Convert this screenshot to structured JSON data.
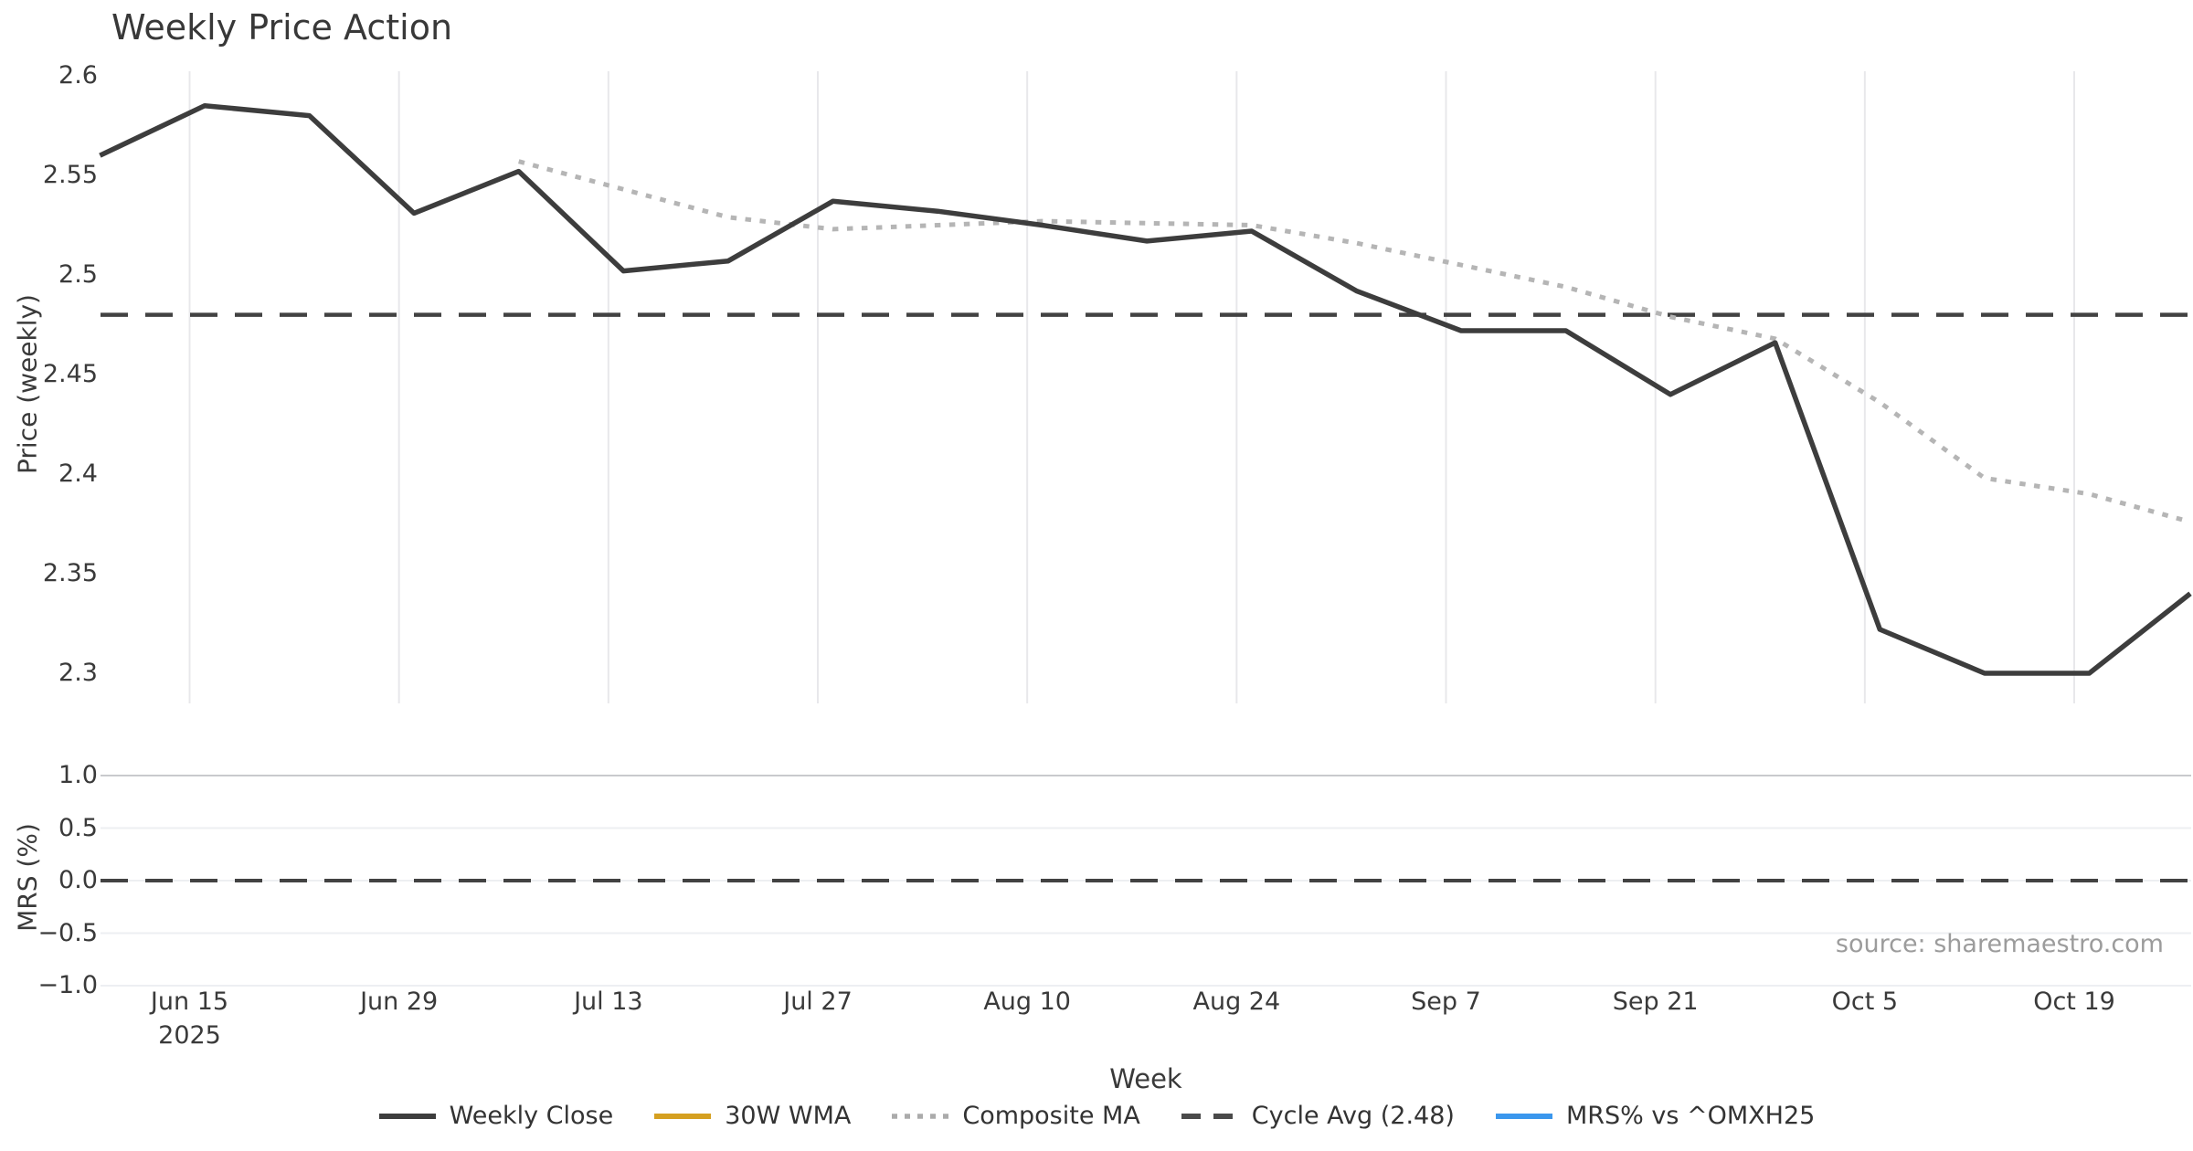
{
  "title": "Weekly Price Action",
  "source_note": "source: sharemaestro.com",
  "axes": {
    "x": {
      "label": "Week",
      "tick_labels": [
        "Jun 15",
        "Jun 29",
        "Jul 13",
        "Jul 27",
        "Aug 10",
        "Aug 24",
        "Sep 7",
        "Sep 21",
        "Oct 5",
        "Oct 19"
      ],
      "first_tick_second_line": "2025"
    },
    "price": {
      "label": "Price (weekly)",
      "tick_labels": [
        "2.6",
        "2.55",
        "2.5",
        "2.45",
        "2.4",
        "2.35",
        "2.3"
      ],
      "ticks": [
        2.6,
        2.55,
        2.5,
        2.45,
        2.4,
        2.35,
        2.3
      ]
    },
    "mrs": {
      "label": "MRS (%)",
      "tick_labels": [
        "1.0",
        "0.5",
        "0.0",
        "−0.5",
        "−1.0"
      ],
      "ticks": [
        1.0,
        0.5,
        0.0,
        -0.5,
        -1.0
      ]
    }
  },
  "legend": {
    "items": [
      {
        "label": "Weekly Close",
        "style": "solid",
        "color": "#3d3d3d"
      },
      {
        "label": "30W WMA",
        "style": "solid",
        "color": "#d5a021"
      },
      {
        "label": "Composite MA",
        "style": "dotted",
        "color": "#ababab"
      },
      {
        "label": "Cycle Avg (2.48)",
        "style": "dashed",
        "color": "#4a4a4a"
      },
      {
        "label": "MRS% vs ^OMXH25",
        "style": "solid",
        "color": "#3b97ed"
      }
    ]
  },
  "colors": {
    "weekly_close": "#3d3d3d",
    "composite_ma": "#b5b5b5",
    "cycle_avg": "#424242",
    "mrs_zero_line": "#424242",
    "vertical_grid": "#e8e8eb",
    "horizontal_grid": "#edeff2",
    "horizontal_grid_top": "#c9cacd",
    "wma_30w": "#d5a021",
    "mrs_line": "#3b97ed",
    "text": "#3a3a3a",
    "source_text": "#9c9c9c"
  },
  "chart_data": [
    {
      "type": "line",
      "panel": "price",
      "title": "Weekly Price Action",
      "xlabel": "Week",
      "ylabel": "Price (weekly)",
      "ylim": [
        2.285,
        2.602
      ],
      "yticks": [
        2.6,
        2.55,
        2.5,
        2.45,
        2.4,
        2.35,
        2.3
      ],
      "x": [
        "2025-06-09",
        "2025-06-16",
        "2025-06-23",
        "2025-06-30",
        "2025-07-07",
        "2025-07-14",
        "2025-07-21",
        "2025-07-28",
        "2025-08-04",
        "2025-08-11",
        "2025-08-18",
        "2025-08-25",
        "2025-09-01",
        "2025-09-08",
        "2025-09-15",
        "2025-09-22",
        "2025-09-29",
        "2025-10-06",
        "2025-10-13",
        "2025-10-20",
        "2025-10-27"
      ],
      "grid": "vertical-only",
      "legend_position": "bottom-center",
      "series": [
        {
          "name": "Weekly Close",
          "values": [
            2.56,
            2.585,
            2.58,
            2.531,
            2.552,
            2.502,
            2.507,
            2.537,
            2.532,
            2.525,
            2.517,
            2.522,
            2.492,
            2.472,
            2.472,
            2.44,
            2.466,
            2.322,
            2.3,
            2.3,
            2.34
          ],
          "plotted": true
        },
        {
          "name": "Composite MA",
          "values": [
            null,
            null,
            null,
            null,
            2.557,
            2.543,
            2.529,
            2.523,
            2.525,
            2.527,
            2.526,
            2.525,
            2.516,
            2.505,
            2.494,
            2.479,
            2.468,
            2.436,
            2.398,
            2.39,
            2.376
          ],
          "plotted": true
        },
        {
          "name": "Cycle Avg",
          "constant": 2.48,
          "plotted": true
        },
        {
          "name": "30W WMA",
          "values": [],
          "plotted": false
        }
      ]
    },
    {
      "type": "line",
      "panel": "mrs",
      "ylabel": "MRS (%)",
      "ylim": [
        -1.0,
        1.0
      ],
      "yticks": [
        1.0,
        0.5,
        0.0,
        -0.5,
        -1.0
      ],
      "grid": "horizontal-only",
      "series": [
        {
          "name": "MRS% vs ^OMXH25",
          "values": [],
          "plotted": false
        },
        {
          "name": "Zero line",
          "constant": 0.0,
          "plotted": true
        }
      ]
    }
  ]
}
